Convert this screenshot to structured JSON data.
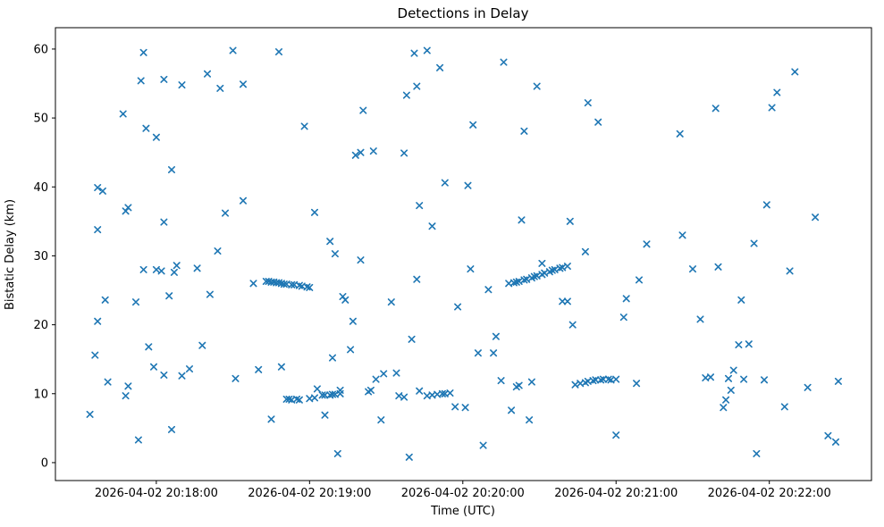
{
  "chart_data": {
    "type": "scatter",
    "title": "Detections in Delay",
    "xlabel": "Time (UTC)",
    "ylabel": "Bistatic Delay (km)",
    "marker": "x",
    "marker_color": "#1f77b4",
    "grid": false,
    "x_unit": "seconds after 2026-04-02 20:17:00 UTC",
    "xlim": [
      20.5,
      340
    ],
    "ylim": [
      -2.6,
      63.1
    ],
    "x_ticks": [
      {
        "t": 60,
        "label": "2026-04-02 20:18:00"
      },
      {
        "t": 120,
        "label": "2026-04-02 20:19:00"
      },
      {
        "t": 180,
        "label": "2026-04-02 20:20:00"
      },
      {
        "t": 240,
        "label": "2026-04-02 20:21:00"
      },
      {
        "t": 300,
        "label": "2026-04-02 20:22:00"
      }
    ],
    "y_ticks": [
      0,
      10,
      20,
      30,
      40,
      50,
      60
    ],
    "points": [
      [
        34,
        7.0
      ],
      [
        36,
        15.6
      ],
      [
        37,
        33.8
      ],
      [
        37,
        39.9
      ],
      [
        39,
        39.4
      ],
      [
        37,
        20.5
      ],
      [
        40,
        23.6
      ],
      [
        41,
        11.7
      ],
      [
        47,
        50.6
      ],
      [
        48,
        36.5
      ],
      [
        49,
        37.0
      ],
      [
        48,
        9.7
      ],
      [
        49,
        11.1
      ],
      [
        52,
        23.3
      ],
      [
        53,
        3.3
      ],
      [
        55,
        59.5
      ],
      [
        54,
        55.4
      ],
      [
        56,
        48.5
      ],
      [
        55,
        28.0
      ],
      [
        57,
        16.8
      ],
      [
        59,
        13.9
      ],
      [
        60,
        28.0
      ],
      [
        62,
        27.8
      ],
      [
        60,
        47.2
      ],
      [
        63,
        55.6
      ],
      [
        63,
        34.9
      ],
      [
        63,
        12.7
      ],
      [
        65,
        24.2
      ],
      [
        66,
        4.8
      ],
      [
        66,
        42.5
      ],
      [
        67,
        27.6
      ],
      [
        68,
        28.6
      ],
      [
        70,
        12.6
      ],
      [
        70,
        54.8
      ],
      [
        73,
        13.6
      ],
      [
        76,
        28.2
      ],
      [
        78,
        17.0
      ],
      [
        80,
        56.4
      ],
      [
        81,
        24.4
      ],
      [
        84,
        30.7
      ],
      [
        85,
        54.3
      ],
      [
        87,
        36.2
      ],
      [
        90,
        59.8
      ],
      [
        91,
        12.2
      ],
      [
        94,
        54.9
      ],
      [
        94,
        38.0
      ],
      [
        98,
        26.0
      ],
      [
        100,
        13.5
      ],
      [
        103,
        26.3
      ],
      [
        104,
        26.3
      ],
      [
        105,
        26.2
      ],
      [
        106,
        26.2
      ],
      [
        107,
        26.1
      ],
      [
        108,
        26.1
      ],
      [
        109,
        26.0
      ],
      [
        110,
        25.9
      ],
      [
        111,
        25.9
      ],
      [
        113,
        25.8
      ],
      [
        114,
        25.8
      ],
      [
        116,
        25.7
      ],
      [
        117,
        25.6
      ],
      [
        119,
        25.5
      ],
      [
        120,
        25.4
      ],
      [
        105,
        6.3
      ],
      [
        108,
        59.6
      ],
      [
        109,
        13.9
      ],
      [
        111,
        9.2
      ],
      [
        112,
        9.2
      ],
      [
        113,
        9.1
      ],
      [
        115,
        9.2
      ],
      [
        116,
        9.1
      ],
      [
        120,
        9.3
      ],
      [
        122,
        9.4
      ],
      [
        118,
        48.8
      ],
      [
        122,
        36.3
      ],
      [
        123,
        10.7
      ],
      [
        125,
        9.8
      ],
      [
        126,
        9.8
      ],
      [
        128,
        9.8
      ],
      [
        129,
        9.9
      ],
      [
        130,
        9.9
      ],
      [
        132,
        10.0
      ],
      [
        126,
        6.9
      ],
      [
        128,
        32.1
      ],
      [
        130,
        30.3
      ],
      [
        129,
        15.2
      ],
      [
        131,
        1.3
      ],
      [
        132,
        10.5
      ],
      [
        133,
        24.1
      ],
      [
        134,
        23.6
      ],
      [
        136,
        16.4
      ],
      [
        137,
        20.5
      ],
      [
        138,
        44.6
      ],
      [
        140,
        45.0
      ],
      [
        140,
        29.4
      ],
      [
        141,
        51.1
      ],
      [
        143,
        10.3
      ],
      [
        144,
        10.5
      ],
      [
        145,
        45.2
      ],
      [
        146,
        12.1
      ],
      [
        148,
        6.2
      ],
      [
        149,
        12.9
      ],
      [
        154,
        13.0
      ],
      [
        152,
        23.3
      ],
      [
        155,
        9.7
      ],
      [
        157,
        9.5
      ],
      [
        157,
        44.9
      ],
      [
        158,
        53.3
      ],
      [
        159,
        0.8
      ],
      [
        160,
        17.9
      ],
      [
        161,
        59.4
      ],
      [
        162,
        54.6
      ],
      [
        162,
        26.6
      ],
      [
        163,
        37.3
      ],
      [
        166,
        59.8
      ],
      [
        168,
        34.3
      ],
      [
        163,
        10.4
      ],
      [
        166,
        9.7
      ],
      [
        168,
        9.8
      ],
      [
        170,
        9.9
      ],
      [
        172,
        10.0
      ],
      [
        173,
        10.0
      ],
      [
        175,
        10.1
      ],
      [
        171,
        57.3
      ],
      [
        173,
        40.6
      ],
      [
        177,
        8.1
      ],
      [
        178,
        22.6
      ],
      [
        181,
        8.0
      ],
      [
        182,
        40.2
      ],
      [
        183,
        28.1
      ],
      [
        184,
        49.0
      ],
      [
        186,
        15.9
      ],
      [
        188,
        2.5
      ],
      [
        190,
        25.1
      ],
      [
        192,
        15.9
      ],
      [
        193,
        18.3
      ],
      [
        195,
        11.9
      ],
      [
        196,
        58.1
      ],
      [
        199,
        7.6
      ],
      [
        201,
        11.0
      ],
      [
        202,
        11.2
      ],
      [
        203,
        35.2
      ],
      [
        204,
        48.1
      ],
      [
        206,
        6.2
      ],
      [
        207,
        11.7
      ],
      [
        209,
        54.6
      ],
      [
        198,
        26.0
      ],
      [
        200,
        26.1
      ],
      [
        201,
        26.2
      ],
      [
        202,
        26.3
      ],
      [
        204,
        26.5
      ],
      [
        205,
        26.6
      ],
      [
        207,
        26.8
      ],
      [
        208,
        27.0
      ],
      [
        209,
        27.1
      ],
      [
        211,
        27.3
      ],
      [
        212,
        27.5
      ],
      [
        214,
        27.7
      ],
      [
        215,
        27.9
      ],
      [
        216,
        28.0
      ],
      [
        218,
        28.2
      ],
      [
        219,
        28.3
      ],
      [
        221,
        28.5
      ],
      [
        211,
        28.9
      ],
      [
        219,
        23.4
      ],
      [
        221,
        23.4
      ],
      [
        222,
        35.0
      ],
      [
        223,
        20.0
      ],
      [
        224,
        11.3
      ],
      [
        226,
        11.5
      ],
      [
        228,
        11.6
      ],
      [
        229,
        11.8
      ],
      [
        231,
        11.9
      ],
      [
        232,
        12.0
      ],
      [
        234,
        12.0
      ],
      [
        235,
        12.1
      ],
      [
        237,
        12.1
      ],
      [
        238,
        12.0
      ],
      [
        240,
        12.1
      ],
      [
        228,
        30.6
      ],
      [
        229,
        52.2
      ],
      [
        233,
        49.4
      ],
      [
        240,
        4.0
      ],
      [
        243,
        21.1
      ],
      [
        244,
        23.8
      ],
      [
        248,
        11.5
      ],
      [
        249,
        26.5
      ],
      [
        252,
        31.7
      ],
      [
        265,
        47.7
      ],
      [
        266,
        33.0
      ],
      [
        270,
        28.1
      ],
      [
        273,
        20.8
      ],
      [
        275,
        12.3
      ],
      [
        277,
        12.4
      ],
      [
        279,
        51.4
      ],
      [
        280,
        28.4
      ],
      [
        282,
        8.0
      ],
      [
        283,
        9.1
      ],
      [
        284,
        12.2
      ],
      [
        285,
        10.5
      ],
      [
        286,
        13.4
      ],
      [
        288,
        17.1
      ],
      [
        289,
        23.6
      ],
      [
        290,
        12.1
      ],
      [
        292,
        17.2
      ],
      [
        294,
        31.8
      ],
      [
        295,
        1.3
      ],
      [
        298,
        12.0
      ],
      [
        299,
        37.4
      ],
      [
        301,
        51.5
      ],
      [
        303,
        53.7
      ],
      [
        306,
        8.1
      ],
      [
        308,
        27.8
      ],
      [
        310,
        56.7
      ],
      [
        315,
        10.9
      ],
      [
        318,
        35.6
      ],
      [
        323,
        3.9
      ],
      [
        326,
        3.0
      ],
      [
        327,
        11.8
      ]
    ]
  }
}
